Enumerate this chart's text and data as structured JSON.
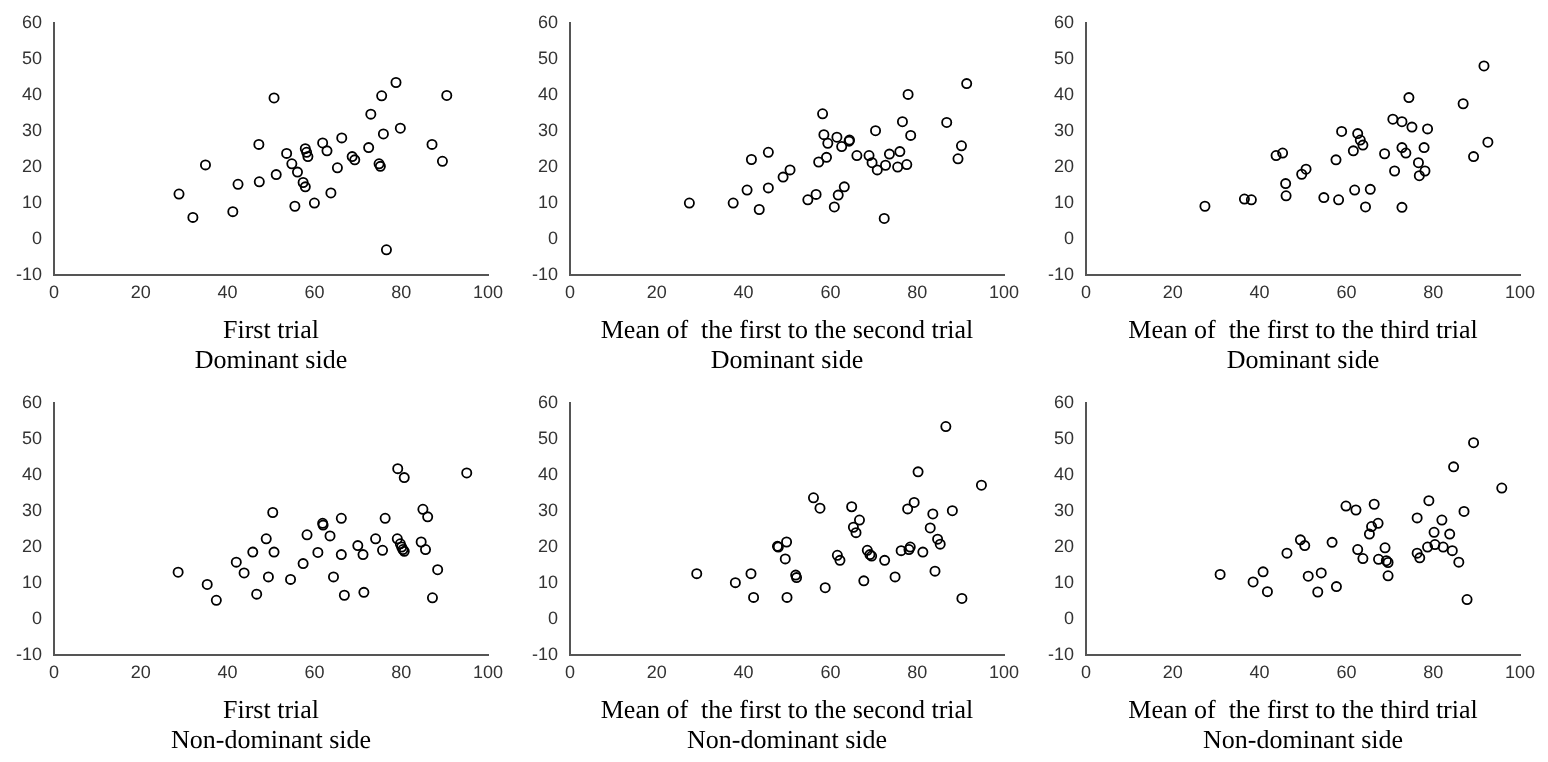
{
  "chart_data": [
    {
      "type": "scatter",
      "xlabel": "First trial\nDominant side",
      "color": "#000000",
      "marker": "circle",
      "xlim": [
        0,
        100
      ],
      "xticks": [
        0,
        20,
        40,
        60,
        80,
        100
      ],
      "ylim": [
        -10,
        60
      ],
      "yticks": [
        -10,
        0,
        10,
        20,
        30,
        40,
        50,
        60
      ],
      "x": [
        28.8,
        32,
        34.9,
        41.2,
        42.4,
        47.2,
        47.3,
        50.7,
        51.2,
        53.6,
        54.8,
        55.5,
        56.1,
        57.4,
        57.9,
        57.9,
        58.2,
        58.5,
        60,
        61.9,
        62.9,
        63.8,
        65.3,
        66.3,
        68.7,
        69.3,
        72.5,
        73,
        74.9,
        75.2,
        75.5,
        75.9,
        76.6,
        78.8,
        79.8,
        87.1,
        89.5,
        90.5
      ],
      "values": [
        12.4,
        5.9,
        20.5,
        7.5,
        15.1,
        26.2,
        15.8,
        39.1,
        17.8,
        23.7,
        20.8,
        9,
        18.5,
        15.6,
        14.4,
        25,
        24,
        22.8,
        9.9,
        26.6,
        24.4,
        12.7,
        19.7,
        28,
        22.8,
        21.9,
        25.3,
        34.6,
        20.8,
        20.1,
        39.7,
        29.1,
        -3.1,
        43.4,
        30.7,
        26.2,
        21.5,
        39.8
      ]
    },
    {
      "type": "scatter",
      "xlabel": "Mean of  the first to the second trial\nDominant side",
      "color": "#000000",
      "marker": "circle",
      "xlim": [
        0,
        100
      ],
      "xticks": [
        0,
        20,
        40,
        60,
        80,
        100
      ],
      "ylim": [
        -10,
        60
      ],
      "yticks": [
        -10,
        0,
        10,
        20,
        30,
        40,
        50,
        60
      ],
      "x": [
        27.5,
        37.6,
        40.8,
        41.8,
        43.6,
        45.7,
        45.7,
        49.1,
        50.7,
        54.8,
        56.7,
        57.3,
        58.2,
        58.5,
        59.1,
        59.4,
        60.9,
        61.5,
        61.8,
        62.6,
        63.2,
        64.3,
        64.4,
        66.1,
        68.9,
        69.6,
        70.4,
        70.8,
        72.4,
        72.7,
        73.6,
        75.5,
        76,
        76.6,
        77.6,
        77.9,
        78.5,
        86.8,
        89.4,
        90.2,
        91.4
      ],
      "values": [
        9.9,
        9.9,
        13.5,
        22,
        8.1,
        14.1,
        24,
        17.1,
        19.1,
        10.8,
        12.3,
        21.3,
        34.7,
        28.9,
        22.6,
        26.5,
        8.8,
        28.2,
        12.1,
        25.6,
        14.4,
        27.1,
        27.4,
        23.1,
        23.1,
        21.1,
        30,
        19.1,
        5.6,
        20.4,
        23.5,
        19.9,
        24.2,
        32.5,
        20.6,
        40.1,
        28.7,
        32.3,
        22.2,
        25.8,
        43.1
      ]
    },
    {
      "type": "scatter",
      "xlabel": "Mean of  the first to the third trial\nDominant side",
      "color": "#000000",
      "marker": "circle",
      "xlim": [
        0,
        100
      ],
      "xticks": [
        0,
        20,
        40,
        60,
        80,
        100
      ],
      "ylim": [
        -10,
        60
      ],
      "yticks": [
        -10,
        0,
        10,
        20,
        30,
        40,
        50,
        60
      ],
      "x": [
        27.4,
        36.5,
        38.1,
        43.8,
        45.3,
        46,
        46.1,
        49.7,
        50.7,
        54.8,
        57.6,
        58.2,
        58.9,
        61.6,
        61.9,
        62.6,
        63.2,
        63.8,
        64.4,
        65.5,
        68.8,
        70.7,
        71.1,
        72.8,
        72.8,
        72.8,
        73.7,
        74.4,
        75.1,
        76.6,
        76.8,
        77.9,
        78.1,
        78.7,
        86.9,
        89.3,
        91.7,
        92.6
      ],
      "values": [
        9,
        11,
        10.8,
        23.1,
        23.8,
        15.3,
        11.9,
        17.9,
        19.3,
        11.4,
        21.9,
        10.8,
        29.8,
        24.4,
        13.5,
        29.2,
        27.4,
        26,
        8.8,
        13.7,
        23.6,
        33.2,
        18.8,
        8.7,
        25.3,
        32.5,
        23.8,
        39.2,
        31,
        21.1,
        17.5,
        25.3,
        18.8,
        30.5,
        37.5,
        22.8,
        48,
        26.8
      ]
    },
    {
      "type": "scatter",
      "xlabel": "First trial\nNon-dominant side",
      "color": "#000000",
      "marker": "circle",
      "xlim": [
        0,
        100
      ],
      "xticks": [
        0,
        20,
        40,
        60,
        80,
        100
      ],
      "ylim": [
        -10,
        60
      ],
      "yticks": [
        -10,
        0,
        10,
        20,
        30,
        40,
        50,
        60
      ],
      "x": [
        28.6,
        35.3,
        37.4,
        42,
        43.8,
        45.8,
        46.7,
        48.9,
        49.4,
        50.4,
        50.7,
        54.5,
        57.4,
        58.3,
        60.8,
        61.9,
        62,
        63.6,
        64.4,
        66.2,
        66.2,
        66.9,
        70,
        71.2,
        71.4,
        74.1,
        75.7,
        76.3,
        79.1,
        79.2,
        79.8,
        80.1,
        80.4,
        80.7,
        80.7,
        84.6,
        85,
        85.6,
        86.1,
        87.2,
        88.4,
        95.1
      ],
      "values": [
        12.9,
        9.5,
        5.1,
        15.7,
        12.7,
        18.5,
        6.8,
        22.2,
        11.6,
        29.5,
        18.5,
        10.9,
        15.3,
        23.3,
        18.4,
        26.5,
        26,
        23,
        11.6,
        17.8,
        27.9,
        6.5,
        20.3,
        17.8,
        7.3,
        22.2,
        19,
        27.9,
        22.2,
        41.7,
        20.8,
        19.9,
        19.2,
        39.2,
        18.7,
        21.3,
        30.4,
        19.2,
        28.3,
        5.8,
        13.6,
        40.5
      ]
    },
    {
      "type": "scatter",
      "xlabel": "Mean of  the first to the second trial\nNon-dominant side",
      "color": "#000000",
      "marker": "circle",
      "xlim": [
        0,
        100
      ],
      "xticks": [
        0,
        20,
        40,
        60,
        80,
        100
      ],
      "ylim": [
        -10,
        60
      ],
      "yticks": [
        -10,
        0,
        10,
        20,
        30,
        40,
        50,
        60
      ],
      "x": [
        29.2,
        38.1,
        41.7,
        42.3,
        47.8,
        48,
        49.6,
        49.9,
        50,
        52,
        52.2,
        56.1,
        57.6,
        58.8,
        61.6,
        62.2,
        64.9,
        65.3,
        65.9,
        66.7,
        67.7,
        68.5,
        69.1,
        69.5,
        72.5,
        74.9,
        76.3,
        78.1,
        78.4,
        77.8,
        79.3,
        80.2,
        81.3,
        83,
        83.6,
        84.1,
        84.7,
        85.3,
        86.6,
        88.1,
        90.3,
        94.8
      ],
      "values": [
        12.5,
        10,
        12.5,
        5.9,
        20.1,
        19.9,
        16.6,
        21.3,
        5.9,
        12.1,
        11.4,
        33.6,
        30.7,
        8.6,
        17.6,
        16.2,
        31.1,
        25.4,
        23.9,
        27.4,
        10.5,
        19,
        17.8,
        17.4,
        16.2,
        11.6,
        18.9,
        19.2,
        19.9,
        30.5,
        32.3,
        40.8,
        18.5,
        25.2,
        29.1,
        13.2,
        22.1,
        20.7,
        53.4,
        30,
        5.6,
        37.1
      ]
    },
    {
      "type": "scatter",
      "xlabel": "Mean of  the first to the third trial\nNon-dominant side",
      "color": "#000000",
      "marker": "circle",
      "xlim": [
        0,
        100
      ],
      "xticks": [
        0,
        20,
        40,
        60,
        80,
        100
      ],
      "ylim": [
        -10,
        60
      ],
      "yticks": [
        -10,
        0,
        10,
        20,
        30,
        40,
        50,
        60
      ],
      "x": [
        30.9,
        38.5,
        40.8,
        41.8,
        46.3,
        49.4,
        50.4,
        51.2,
        53.4,
        54.2,
        56.7,
        57.7,
        59.9,
        62.2,
        62.6,
        63.8,
        65.3,
        65.8,
        66.4,
        67.3,
        67.4,
        68.9,
        69.2,
        69.6,
        69.6,
        76.3,
        76.3,
        76.9,
        78.7,
        79,
        80.2,
        80.4,
        82,
        82.3,
        83.8,
        84.4,
        84.7,
        85.9,
        87.1,
        87.8,
        89.3,
        95.8
      ],
      "values": [
        12.3,
        10.2,
        13,
        7.5,
        18.2,
        21.9,
        20.3,
        11.8,
        7.4,
        12.7,
        21.2,
        8.9,
        31.3,
        30.2,
        19.2,
        16.7,
        23.5,
        25.6,
        31.8,
        26.5,
        16.5,
        19.7,
        16.1,
        15.6,
        11.9,
        28,
        18.2,
        16.9,
        19.9,
        32.8,
        24,
        20.6,
        27.4,
        19.9,
        23.5,
        18.9,
        42.2,
        15.7,
        29.8,
        5.3,
        48.9,
        36.3
      ]
    }
  ]
}
